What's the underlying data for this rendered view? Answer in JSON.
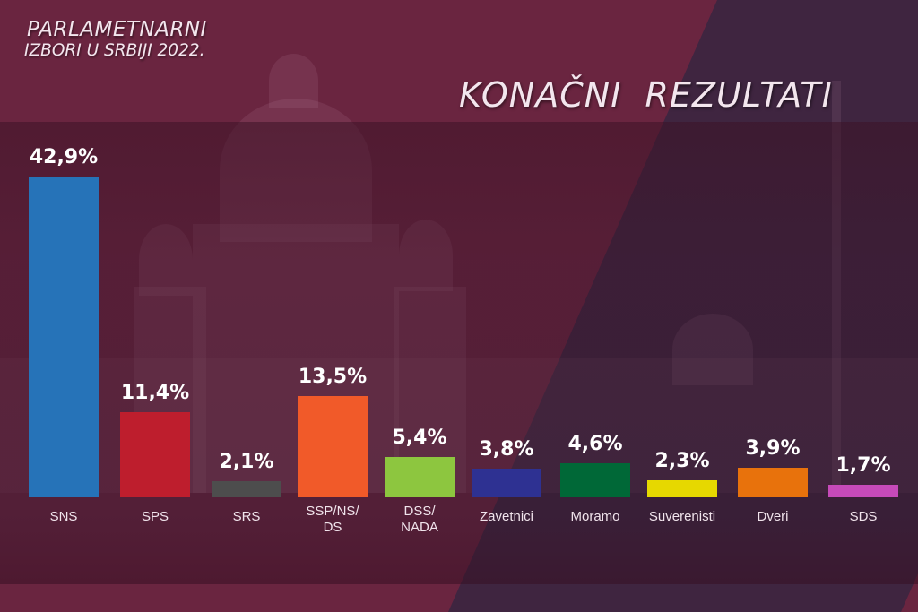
{
  "header": {
    "subtitle_line1": "PARLAMETNARNI",
    "subtitle_line2": "IZBORI U SRBIJI 2022.",
    "title": "KONAČNI  REZULTATI"
  },
  "colors": {
    "background_left": "#6a2540",
    "background_right": "#3f2540",
    "text": "#ffffff"
  },
  "chart_data": {
    "type": "bar",
    "title": "KONAČNI REZULTATI",
    "subtitle": "PARLAMETNARNI IZBORI U SRBIJI 2022.",
    "xlabel": "",
    "ylabel": "",
    "ylim": [
      0,
      45
    ],
    "grid": false,
    "legend": "none",
    "categories": [
      "SNS",
      "SPS",
      "SRS",
      "SSP/NS/DS",
      "DSS/NADA",
      "Zavetnici",
      "Moramo",
      "Suverenisti",
      "Dveri",
      "SDS"
    ],
    "values": [
      42.9,
      11.4,
      2.1,
      13.5,
      5.4,
      3.8,
      4.6,
      2.3,
      3.9,
      1.7
    ],
    "value_labels": [
      "42,9%",
      "11,4%",
      "2,1%",
      "13,5%",
      "5,4%",
      "3,8%",
      "4,6%",
      "2,3%",
      "3,9%",
      "1,7%"
    ],
    "bar_colors": [
      "#2673b8",
      "#be1e2d",
      "#4d4d4d",
      "#f15a29",
      "#8dc63f",
      "#2e3192",
      "#006837",
      "#e6d800",
      "#e8720c",
      "#c64ab9"
    ],
    "label_lines": [
      [
        "SNS"
      ],
      [
        "SPS"
      ],
      [
        "SRS"
      ],
      [
        "SSP/NS/",
        "DS"
      ],
      [
        "DSS/",
        "NADA"
      ],
      [
        "Zavetnici"
      ],
      [
        "Moramo"
      ],
      [
        "Suverenisti"
      ],
      [
        "Dveri"
      ],
      [
        "SDS"
      ]
    ]
  }
}
